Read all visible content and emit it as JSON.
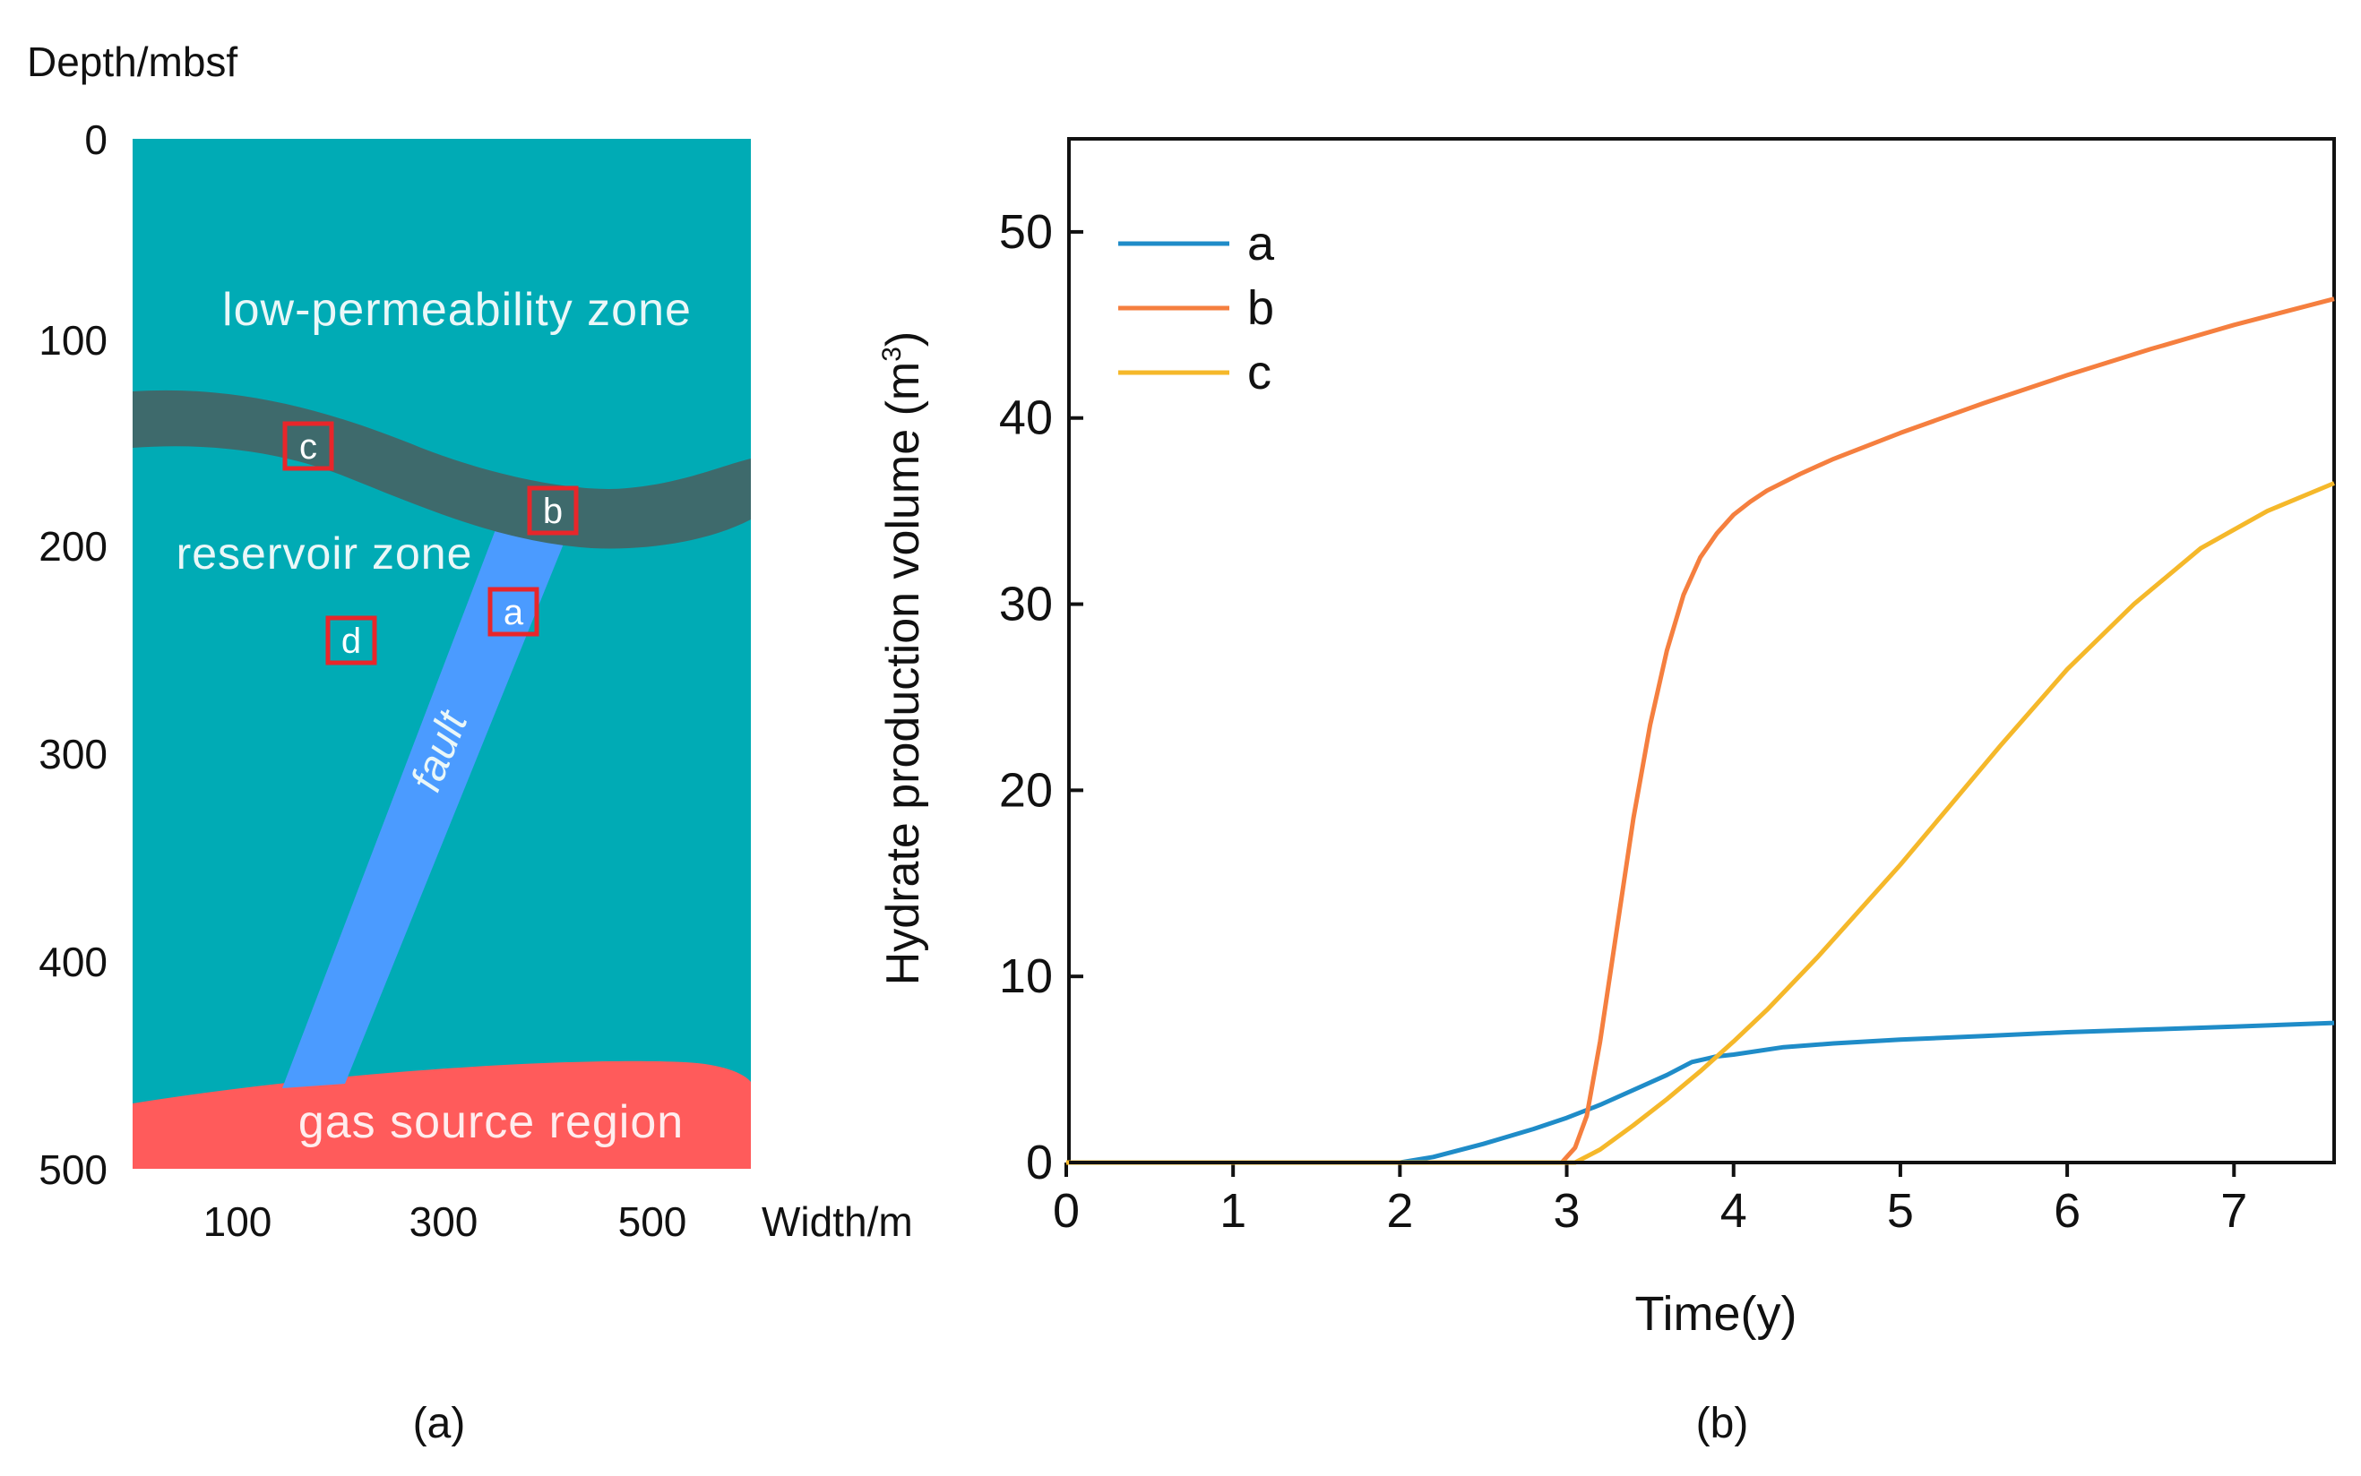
{
  "panel_a": {
    "caption": "(a)",
    "ylabel": "Depth/mbsf",
    "xlabel": "Width/m",
    "y_ticks": [
      "0",
      "100",
      "200",
      "300",
      "400",
      "500"
    ],
    "x_ticks": [
      "100",
      "300",
      "500"
    ],
    "labels": {
      "low_perm": "low-permeability zone",
      "reservoir": "reservoir zone",
      "gas": "gas source region",
      "fault": "fault"
    },
    "markers": [
      "a",
      "b",
      "c",
      "d"
    ],
    "colors": {
      "background": "#00ABB5",
      "low_perm_band": "#3E6A6C",
      "fault": "#4B9BFF",
      "gas": "#FF5B5B",
      "marker": "#E8262A"
    }
  },
  "chart_data": {
    "type": "line",
    "caption": "(b)",
    "xlabel": "Time(y)",
    "ylabel": "Hydrate production volume (m",
    "ylabel_sup": "3",
    "ylabel_close": ")",
    "xlim": [
      0,
      7.6
    ],
    "ylim": [
      0,
      55
    ],
    "x_ticks": [
      0,
      1,
      2,
      3,
      4,
      5,
      6,
      7
    ],
    "y_ticks": [
      0,
      10,
      20,
      30,
      40,
      50
    ],
    "legend_position": "top-left",
    "grid": false,
    "series": [
      {
        "name": "a",
        "color": "#1F8CC8",
        "x": [
          2.0,
          2.2,
          2.5,
          2.8,
          3.0,
          3.2,
          3.4,
          3.6,
          3.75,
          3.9,
          4.0,
          4.3,
          4.6,
          5.0,
          5.5,
          6.0,
          6.5,
          7.0,
          7.6
        ],
        "y": [
          0,
          0.3,
          1.0,
          1.8,
          2.4,
          3.1,
          3.9,
          4.7,
          5.4,
          5.7,
          5.8,
          6.2,
          6.4,
          6.6,
          6.8,
          7.0,
          7.15,
          7.3,
          7.5
        ]
      },
      {
        "name": "b",
        "color": "#F57F3F",
        "x": [
          2.97,
          3.05,
          3.12,
          3.2,
          3.3,
          3.4,
          3.5,
          3.6,
          3.7,
          3.8,
          3.9,
          4.0,
          4.1,
          4.2,
          4.4,
          4.6,
          5.0,
          5.5,
          6.0,
          6.5,
          7.0,
          7.6
        ],
        "y": [
          0,
          0.8,
          2.5,
          6.5,
          12.5,
          18.5,
          23.5,
          27.5,
          30.5,
          32.5,
          33.8,
          34.8,
          35.5,
          36.1,
          37.0,
          37.8,
          39.2,
          40.8,
          42.3,
          43.7,
          45.0,
          46.4
        ]
      },
      {
        "name": "c",
        "color": "#F5B82A",
        "x": [
          3.05,
          3.2,
          3.4,
          3.6,
          3.8,
          4.0,
          4.2,
          4.5,
          4.8,
          5.0,
          5.3,
          5.6,
          6.0,
          6.4,
          6.8,
          7.2,
          7.6
        ],
        "y": [
          0,
          0.7,
          2.0,
          3.4,
          4.9,
          6.5,
          8.2,
          11.0,
          14.0,
          16.0,
          19.2,
          22.4,
          26.5,
          30.0,
          33.0,
          35.0,
          36.5
        ]
      }
    ]
  }
}
